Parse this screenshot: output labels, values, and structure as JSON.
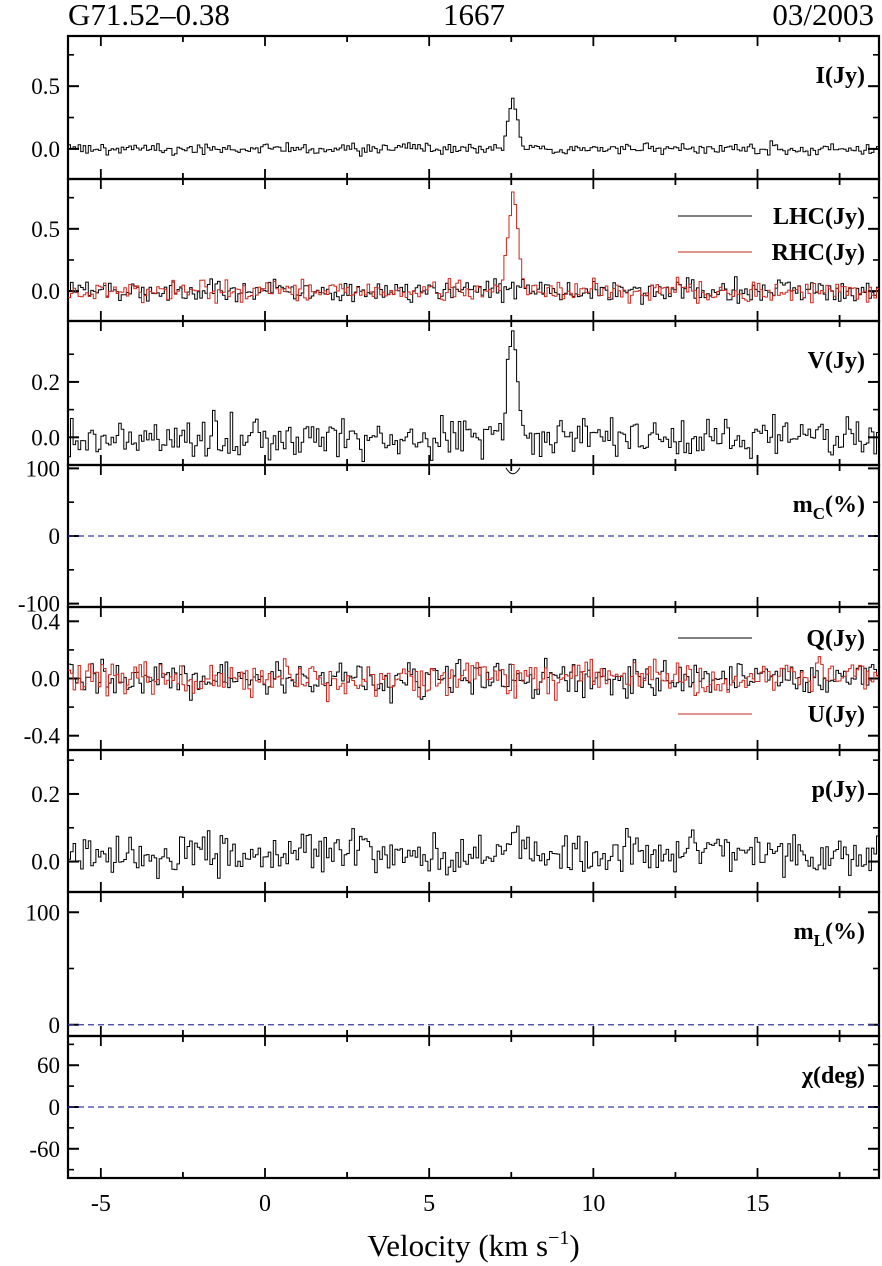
{
  "header": {
    "source": "G71.52–0.38",
    "frequency": "1667",
    "epoch": "03/2003"
  },
  "colors": {
    "black_series": "#000000",
    "red_series": "#c8281e",
    "zero_line": "#3a3aa8",
    "axes": "#000000"
  },
  "chart_data": {
    "type": "line",
    "layout": "8 stacked panels sharing the x axis",
    "xlabel": "Velocity (km s⁻¹)",
    "xlim": [
      -6,
      18.7
    ],
    "xticks": [
      -5,
      0,
      5,
      10,
      15
    ],
    "peak": {
      "x_center": 7.55,
      "x_range": [
        7.2,
        7.85
      ]
    },
    "panels": [
      {
        "id": "I",
        "label": "I(Jy)",
        "ylim": [
          -0.24,
          0.9
        ],
        "yticks": [
          0.0,
          0.5
        ],
        "ytick_labels": [
          "0.0",
          "0.5"
        ],
        "series": [
          {
            "name": "I(Jy)",
            "color": "black",
            "noise": 0.022,
            "peak": 0.39,
            "seed": 3
          }
        ]
      },
      {
        "id": "circ",
        "label": "",
        "ylim": [
          -0.24,
          0.9
        ],
        "yticks": [
          0.0,
          0.5
        ],
        "ytick_labels": [
          "0.0",
          "0.5"
        ],
        "legend": [
          {
            "name": "LHC(Jy)",
            "color": "black"
          },
          {
            "name": "RHC(Jy)",
            "color": "red"
          }
        ],
        "series": [
          {
            "name": "LHC(Jy)",
            "color": "black",
            "noise": 0.045,
            "peak": 0.03,
            "seed": 7
          },
          {
            "name": "RHC(Jy)",
            "color": "red",
            "noise": 0.04,
            "peak": 0.75,
            "seed": 11
          }
        ]
      },
      {
        "id": "V",
        "label": "V(Jy)",
        "ylim": [
          -0.1,
          0.42
        ],
        "yticks": [
          0.0,
          0.2
        ],
        "ytick_labels": [
          "0.0",
          "0.2"
        ],
        "series": [
          {
            "name": "V(Jy)",
            "color": "black",
            "noise": 0.035,
            "peak": 0.34,
            "seed": 13
          }
        ]
      },
      {
        "id": "mc",
        "label": "m_C(%)",
        "ylim": [
          -105,
          105
        ],
        "yticks": [
          -100,
          0,
          100
        ],
        "ytick_labels": [
          "-100",
          "0",
          "100"
        ],
        "zero_line": true,
        "dip": {
          "x": 7.55,
          "y": 95
        }
      },
      {
        "id": "QU",
        "label": "",
        "ylim": [
          -0.5,
          0.5
        ],
        "yticks": [
          -0.4,
          0.0,
          0.4
        ],
        "ytick_labels": [
          "-0.4",
          "0.0",
          "0.4"
        ],
        "legend": [
          {
            "name": "Q(Jy)",
            "color": "black"
          },
          {
            "name": "U(Jy)",
            "color": "red"
          }
        ],
        "series": [
          {
            "name": "Q(Jy)",
            "color": "black",
            "noise": 0.06,
            "peak": 0.0,
            "seed": 17
          },
          {
            "name": "U(Jy)",
            "color": "red",
            "noise": 0.06,
            "peak": 0.0,
            "seed": 19
          }
        ]
      },
      {
        "id": "p",
        "label": "p(Jy)",
        "ylim": [
          -0.09,
          0.33
        ],
        "yticks": [
          0.0,
          0.2
        ],
        "ytick_labels": [
          "0.0",
          "0.2"
        ],
        "series": [
          {
            "name": "p(Jy)",
            "color": "black",
            "noise": 0.03,
            "peak": 0.06,
            "seed": 23,
            "offset": 0.02
          }
        ]
      },
      {
        "id": "mL",
        "label": "m_L(%)",
        "ylim": [
          -10,
          118
        ],
        "yticks": [
          0,
          100
        ],
        "ytick_labels": [
          "0",
          "100"
        ],
        "zero_line": true
      },
      {
        "id": "chi",
        "label": "χ(deg)",
        "ylim": [
          -102,
          102
        ],
        "yticks": [
          -60,
          0,
          60
        ],
        "ytick_labels": [
          "-60",
          "0",
          "60"
        ],
        "zero_line": true
      }
    ]
  }
}
